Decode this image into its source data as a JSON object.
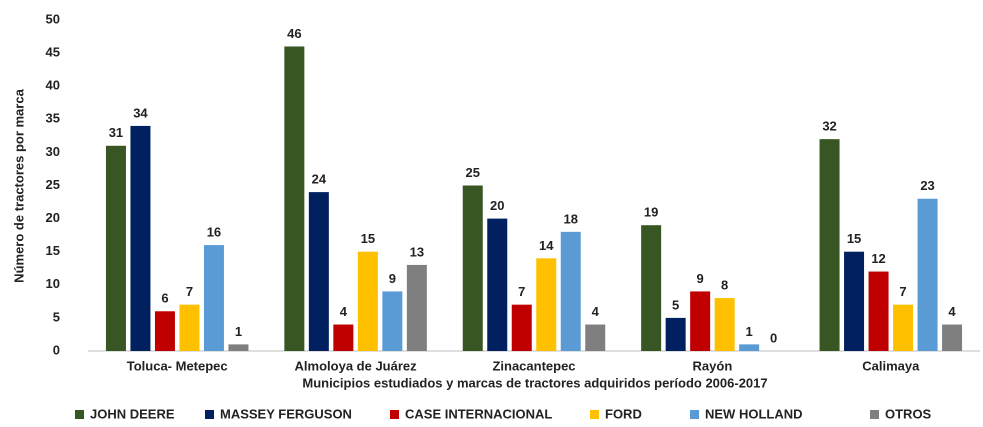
{
  "chart_data": {
    "type": "bar",
    "xlabel": "Municipios estudiados y marcas de tractores adquiridos período 2006-2017",
    "ylabel": "Número de tractores por marca",
    "categories": [
      "Toluca- Metepec",
      "Almoloya de Juárez",
      "Zinacantepec",
      "Rayón",
      "Calimaya"
    ],
    "series": [
      {
        "name": "JOHN DEERE",
        "color": "#375623",
        "values": [
          31,
          46,
          25,
          19,
          32
        ]
      },
      {
        "name": "MASSEY FERGUSON",
        "color": "#002060",
        "values": [
          34,
          24,
          20,
          5,
          15
        ]
      },
      {
        "name": "CASE INTERNACIONAL",
        "color": "#c00000",
        "values": [
          6,
          4,
          7,
          9,
          12
        ]
      },
      {
        "name": "FORD",
        "color": "#ffc000",
        "values": [
          7,
          15,
          14,
          8,
          7
        ]
      },
      {
        "name": "NEW HOLLAND",
        "color": "#5b9bd5",
        "values": [
          16,
          9,
          18,
          1,
          23
        ]
      },
      {
        "name": "OTROS",
        "color": "#7f7f7f",
        "values": [
          1,
          13,
          4,
          0,
          4
        ]
      }
    ],
    "ylim": [
      0,
      50
    ],
    "yticks": [
      0,
      5,
      10,
      15,
      20,
      25,
      30,
      35,
      40,
      45,
      50
    ],
    "grid": false,
    "legend": "bottom",
    "data_labels": true
  }
}
